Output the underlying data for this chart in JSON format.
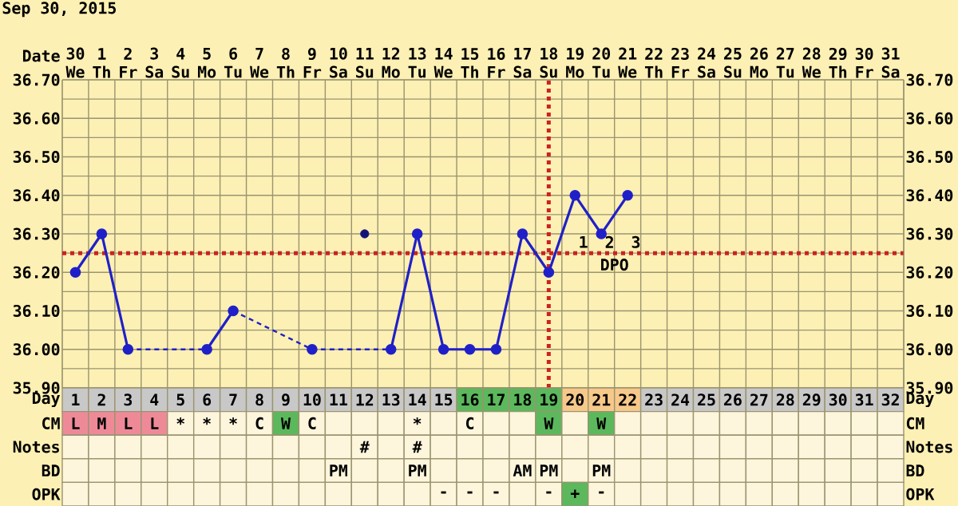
{
  "chart_data": [
    {
      "type": "line",
      "title": "Sep 30, 2015",
      "xlabel": "Date",
      "categories": [
        "30 We",
        "1 Th",
        "2 Fr",
        "3 Sa",
        "4 Su",
        "5 Mo",
        "6 Tu",
        "7 We",
        "8 Th",
        "9 Fr",
        "10 Sa",
        "11 Su",
        "12 Mo",
        "13 Tu",
        "14 We",
        "15 Th",
        "16 Fr",
        "17 Sa",
        "18 Su",
        "19 Mo",
        "20 Tu",
        "21 We",
        "22 Th",
        "23 Fr",
        "24 Sa",
        "25 Su",
        "26 Mo",
        "27 Tu",
        "28 We",
        "29 Th",
        "30 Fr",
        "31 Sa"
      ],
      "series": [
        {
          "type": "line",
          "color": "#2020c8",
          "values": [
            36.2,
            36.3,
            36.0,
            null,
            null,
            36.0,
            36.1,
            null,
            null,
            36.0,
            null,
            null,
            36.0,
            36.3,
            36.0,
            36.0,
            36.0,
            36.3,
            36.2,
            36.4,
            36.3,
            36.4,
            null,
            null,
            null,
            null,
            null,
            null,
            null,
            null,
            null,
            null
          ]
        },
        {
          "type": "scatter",
          "color": "#141478",
          "values": [
            null,
            null,
            null,
            null,
            null,
            null,
            null,
            null,
            null,
            null,
            null,
            36.3,
            null,
            null,
            null,
            null,
            null,
            null,
            null,
            null,
            null,
            null,
            null,
            null,
            null,
            null,
            null,
            null,
            null,
            null,
            null,
            null
          ]
        }
      ],
      "ylim": [
        35.9,
        36.7
      ],
      "yticks": [
        {
          "value": 35.9,
          "label": "35.90"
        },
        {
          "value": 36.0,
          "label": "36.00"
        },
        {
          "value": 36.1,
          "label": "36.10"
        },
        {
          "value": 36.2,
          "label": "36.20"
        },
        {
          "value": 36.3,
          "label": "36.30"
        },
        {
          "value": 36.4,
          "label": "36.40"
        },
        {
          "value": 36.5,
          "label": "36.50"
        },
        {
          "value": 36.6,
          "label": "36.60"
        },
        {
          "value": 36.7,
          "label": "36.70"
        }
      ],
      "y2lim": [
        35.9,
        36.7
      ],
      "y2ticks": [
        {
          "value": 35.9,
          "label": "35.90"
        },
        {
          "value": 36.0,
          "label": "36.00"
        },
        {
          "value": 36.1,
          "label": "36.10"
        },
        {
          "value": 36.2,
          "label": "36.20"
        },
        {
          "value": 36.3,
          "label": "36.30"
        },
        {
          "value": 36.4,
          "label": "36.40"
        },
        {
          "value": 36.5,
          "label": "36.50"
        },
        {
          "value": 36.6,
          "label": "36.60"
        },
        {
          "value": 36.7,
          "label": "36.70"
        }
      ],
      "grid": true,
      "marker": "circle",
      "line_style": "solid",
      "ref_lines": [
        {
          "axis": "y",
          "value": 36.25,
          "color": "#cc2222",
          "line_style": "dotted"
        },
        {
          "axis": "x",
          "value": "18 Su",
          "color": "#cc2222",
          "line_style": "dotted"
        }
      ],
      "annotations": [
        "1",
        "2",
        "3",
        "DPO"
      ]
    },
    {
      "type": "heatmap",
      "categories": [
        null,
        null,
        null,
        null,
        null,
        null,
        null,
        null,
        null,
        null,
        null,
        null,
        null,
        null,
        null,
        null,
        null,
        null,
        null,
        null,
        null,
        null,
        null,
        null,
        null,
        null,
        null,
        null,
        null,
        null,
        null,
        null
      ],
      "y_categories": [
        "Day",
        "CM",
        "Notes",
        "BD",
        "OPK"
      ],
      "y2_categories": [
        "Day",
        "CM",
        "Notes",
        "BD",
        "OPK"
      ],
      "cells": [
        [
          null,
          null,
          null,
          null,
          null,
          null,
          null,
          null,
          null,
          null,
          null,
          null,
          null,
          null,
          null,
          null,
          null,
          null,
          null,
          null,
          null,
          null,
          null,
          null,
          null,
          null,
          null,
          null,
          null,
          null,
          null,
          null
        ],
        [
          null,
          null,
          null,
          null,
          null,
          null,
          null,
          null,
          null,
          null,
          null,
          null,
          null,
          null,
          null,
          null,
          null,
          null,
          null,
          null,
          null,
          null,
          null,
          null,
          null,
          null,
          null,
          null,
          null,
          null,
          null,
          null
        ],
        [
          null,
          null,
          null,
          null,
          null,
          null,
          null,
          null,
          null,
          null,
          null,
          null,
          null,
          null,
          null,
          null,
          null,
          null,
          null,
          null,
          null,
          null,
          null,
          null,
          null,
          null,
          null,
          null,
          null,
          null,
          null,
          null
        ],
        [
          null,
          null,
          null,
          null,
          null,
          null,
          null,
          null,
          null,
          null,
          null,
          null,
          null,
          null,
          null,
          null,
          null,
          null,
          null,
          null,
          null,
          null,
          null,
          null,
          null,
          null,
          null,
          null,
          null,
          null,
          null,
          null
        ],
        [
          null,
          null,
          null,
          null,
          null,
          null,
          null,
          null,
          null,
          null,
          null,
          null,
          null,
          null,
          null,
          null,
          null,
          null,
          null,
          null,
          null,
          null,
          null,
          null,
          null,
          null,
          null,
          null,
          null,
          null,
          null,
          null
        ]
      ],
      "cell_labels": [
        [
          "1",
          "2",
          "3",
          "4",
          "5",
          "6",
          "7",
          "8",
          "9",
          "10",
          "11",
          "12",
          "13",
          "14",
          "15",
          "16",
          "17",
          "18",
          "19",
          "20",
          "21",
          "22",
          "23",
          "24",
          "25",
          "26",
          "27",
          "28",
          "29",
          "30",
          "31",
          "32"
        ],
        [
          "L",
          "M",
          "L",
          "L",
          "*",
          "*",
          "*",
          "C",
          "W",
          "C",
          null,
          null,
          null,
          "*",
          null,
          "C",
          null,
          null,
          "W",
          null,
          "W",
          null,
          null,
          null,
          null,
          null,
          null,
          null,
          null,
          null,
          null,
          null
        ],
        [
          null,
          null,
          null,
          null,
          null,
          null,
          null,
          null,
          null,
          null,
          null,
          "#",
          null,
          "#",
          null,
          null,
          null,
          null,
          null,
          null,
          null,
          null,
          null,
          null,
          null,
          null,
          null,
          null,
          null,
          null,
          null,
          null
        ],
        [
          null,
          null,
          null,
          null,
          null,
          null,
          null,
          null,
          null,
          null,
          "PM",
          null,
          null,
          "PM",
          null,
          null,
          null,
          "AM",
          "PM",
          null,
          "PM",
          null,
          null,
          null,
          null,
          null,
          null,
          null,
          null,
          null,
          null,
          null
        ],
        [
          null,
          null,
          null,
          null,
          null,
          null,
          null,
          null,
          null,
          null,
          null,
          null,
          null,
          null,
          "-",
          "-",
          "-",
          null,
          "-",
          "+",
          "-",
          null,
          null,
          null,
          null,
          null,
          null,
          null,
          null,
          null,
          null,
          null
        ]
      ],
      "colors": [
        [
          "#c8c8c8",
          "#c8c8c8",
          "#c8c8c8",
          "#c8c8c8",
          "#c8c8c8",
          "#c8c8c8",
          "#c8c8c8",
          "#c8c8c8",
          "#c8c8c8",
          "#c8c8c8",
          "#c8c8c8",
          "#c8c8c8",
          "#c8c8c8",
          "#c8c8c8",
          "#c8c8c8",
          "#5cb85c",
          "#5cb85c",
          "#5cb85c",
          "#5cb85c",
          "#f6c88a",
          "#f6c88a",
          "#f6c88a",
          "#c8c8c8",
          "#c8c8c8",
          "#c8c8c8",
          "#c8c8c8",
          "#c8c8c8",
          "#c8c8c8",
          "#c8c8c8",
          "#c8c8c8",
          "#c8c8c8",
          "#c8c8c8"
        ],
        [
          "#ee8a98",
          "#ee8a98",
          "#ee8a98",
          "#ee8a98",
          null,
          null,
          null,
          null,
          "#5cb85c",
          null,
          null,
          null,
          null,
          null,
          null,
          null,
          null,
          null,
          "#5cb85c",
          null,
          "#5cb85c",
          null,
          null,
          null,
          null,
          null,
          null,
          null,
          null,
          null,
          null,
          null
        ],
        [
          null,
          null,
          null,
          null,
          null,
          null,
          null,
          null,
          null,
          null,
          null,
          null,
          null,
          null,
          null,
          null,
          null,
          null,
          null,
          null,
          null,
          null,
          null,
          null,
          null,
          null,
          null,
          null,
          null,
          null,
          null,
          null
        ],
        [
          null,
          null,
          null,
          null,
          null,
          null,
          null,
          null,
          null,
          null,
          null,
          null,
          null,
          null,
          null,
          null,
          null,
          null,
          null,
          null,
          null,
          null,
          null,
          null,
          null,
          null,
          null,
          null,
          null,
          null,
          null,
          null
        ],
        [
          null,
          null,
          null,
          null,
          null,
          null,
          null,
          null,
          null,
          null,
          null,
          null,
          null,
          null,
          null,
          null,
          null,
          null,
          null,
          "#5cb85c",
          null,
          null,
          null,
          null,
          null,
          null,
          null,
          null,
          null,
          null,
          null,
          null
        ]
      ]
    }
  ]
}
